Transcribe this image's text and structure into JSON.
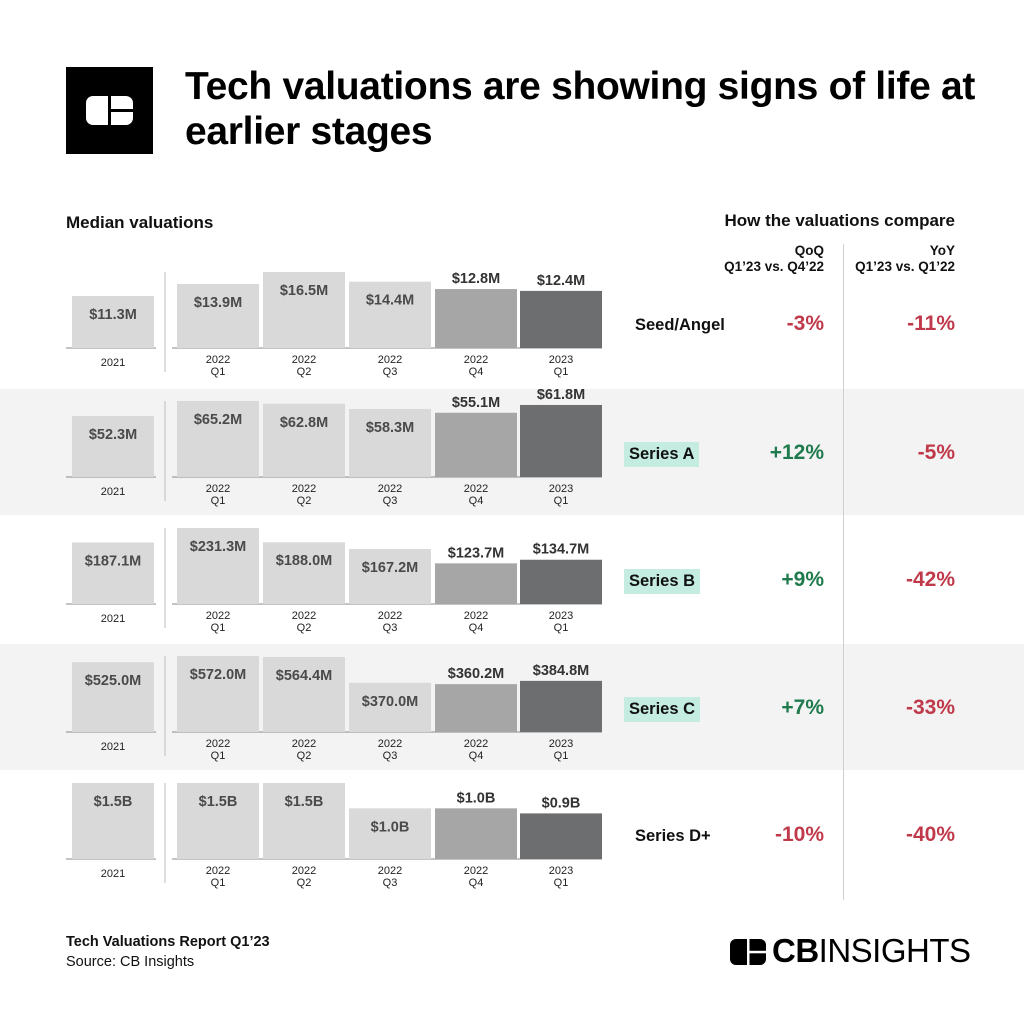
{
  "header": {
    "title": "Tech valuations are showing signs of life at earlier stages",
    "logo_icon": "cb-insights-logo-icon"
  },
  "left_label": "Median valuations",
  "right_label": "How the valuations compare",
  "compare_columns": [
    {
      "title": "QoQ",
      "subtitle": "Q1’23 vs. Q4’22"
    },
    {
      "title": "YoY",
      "subtitle": "Q1’23 vs. Q1’22"
    }
  ],
  "colors": {
    "bar_light": "#d9d9d9",
    "bar_q4": "#a6a6a6",
    "bar_latest": "#6d6e70",
    "positive": "#1f7a4d",
    "negative": "#c0394a",
    "stage_highlight": "#c5ece0",
    "band": "#f3f3f3"
  },
  "chart_data": {
    "type": "bar",
    "title": "Median valuations",
    "categories": [
      {
        "year": "2021",
        "quarter": ""
      },
      {
        "year": "2022",
        "quarter": "Q1"
      },
      {
        "year": "2022",
        "quarter": "Q2"
      },
      {
        "year": "2022",
        "quarter": "Q3"
      },
      {
        "year": "2022",
        "quarter": "Q4"
      },
      {
        "year": "2023",
        "quarter": "Q1"
      }
    ],
    "series": [
      {
        "name": "Seed/Angel",
        "highlight": false,
        "values": [
          11.3,
          13.9,
          16.5,
          14.4,
          12.8,
          12.4
        ],
        "labels": [
          "$11.3M",
          "$13.9M",
          "$16.5M",
          "$14.4M",
          "$12.8M",
          "$12.4M"
        ],
        "qoq": "-3%",
        "yoy": "-11%"
      },
      {
        "name": "Series A",
        "highlight": true,
        "values": [
          52.3,
          65.2,
          62.8,
          58.3,
          55.1,
          61.8
        ],
        "labels": [
          "$52.3M",
          "$65.2M",
          "$62.8M",
          "$58.3M",
          "$55.1M",
          "$61.8M"
        ],
        "qoq": "+12%",
        "yoy": "-5%"
      },
      {
        "name": "Series B",
        "highlight": true,
        "values": [
          187.1,
          231.3,
          188.0,
          167.2,
          123.7,
          134.7
        ],
        "labels": [
          "$187.1M",
          "$231.3M",
          "$188.0M",
          "$167.2M",
          "$123.7M",
          "$134.7M"
        ],
        "qoq": "+9%",
        "yoy": "-42%"
      },
      {
        "name": "Series C",
        "highlight": true,
        "values": [
          525.0,
          572.0,
          564.4,
          370.0,
          360.2,
          384.8
        ],
        "labels": [
          "$525.0M",
          "$572.0M",
          "$564.4M",
          "$370.0M",
          "$360.2M",
          "$384.8M"
        ],
        "qoq": "+7%",
        "yoy": "-33%"
      },
      {
        "name": "Series D+",
        "highlight": false,
        "values": [
          1.5,
          1.5,
          1.5,
          1.0,
          1.0,
          0.9
        ],
        "labels": [
          "$1.5B",
          "$1.5B",
          "$1.5B",
          "$1.0B",
          "$1.0B",
          "$0.9B"
        ],
        "qoq": "-10%",
        "yoy": "-40%"
      }
    ]
  },
  "footer": {
    "report": "Tech Valuations Report Q1’23",
    "source": "Source: CB Insights",
    "brand_bold": "CB",
    "brand_rest": "INSIGHTS"
  }
}
